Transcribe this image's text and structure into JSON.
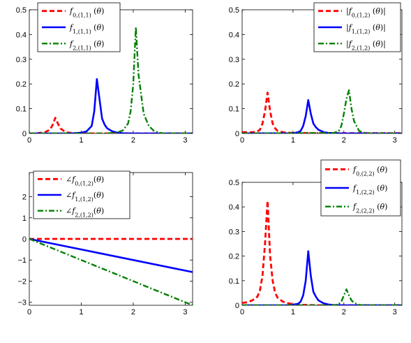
{
  "chart_data": [
    {
      "id": "top-left",
      "type": "line",
      "xlim": [
        0,
        3.14159
      ],
      "ylim": [
        0,
        0.5
      ],
      "xticks": [
        0,
        1,
        2,
        3
      ],
      "yticks": [
        0,
        0.1,
        0.2,
        0.3,
        0.4,
        0.5
      ],
      "xtick_labels": [
        "0",
        "1",
        "2",
        "3"
      ],
      "ytick_labels": [
        "0",
        "0.1",
        "0.2",
        "0.3",
        "0.4",
        "0.5"
      ],
      "legend_position": "top-left",
      "series": [
        {
          "name": "f0,(1,1) (θ)",
          "color": "#ff0000",
          "style": "dashed",
          "x": [
            0,
            0.1,
            0.2,
            0.3,
            0.4,
            0.45,
            0.5,
            0.55,
            0.6,
            0.7,
            0.8,
            1.0,
            1.5,
            2.0,
            2.5,
            3.14
          ],
          "y": [
            0,
            0,
            0.002,
            0.005,
            0.015,
            0.035,
            0.063,
            0.04,
            0.02,
            0.005,
            0.002,
            0,
            0,
            0,
            0,
            0
          ]
        },
        {
          "name": "f1,(1,1) (θ)",
          "color": "#0000ff",
          "style": "solid",
          "x": [
            0,
            0.8,
            1.0,
            1.1,
            1.2,
            1.25,
            1.3,
            1.35,
            1.4,
            1.45,
            1.5,
            1.6,
            1.7,
            1.8,
            2.0,
            3.14
          ],
          "y": [
            0,
            0,
            0.003,
            0.008,
            0.03,
            0.09,
            0.22,
            0.14,
            0.06,
            0.035,
            0.02,
            0.008,
            0.003,
            0.001,
            0,
            0
          ]
        },
        {
          "name": "f2,(1,1) (θ)",
          "color": "#008000",
          "style": "dashdot",
          "x": [
            0,
            1.5,
            1.7,
            1.8,
            1.9,
            1.95,
            2.0,
            2.05,
            2.1,
            2.2,
            2.3,
            2.4,
            2.5,
            2.6,
            3.14
          ],
          "y": [
            0,
            0,
            0.005,
            0.012,
            0.04,
            0.09,
            0.2,
            0.43,
            0.24,
            0.08,
            0.03,
            0.01,
            0.003,
            0,
            0
          ]
        }
      ]
    },
    {
      "id": "top-right",
      "type": "line",
      "xlim": [
        0,
        3.14159
      ],
      "ylim": [
        0,
        0.5
      ],
      "xticks": [
        0,
        1,
        2,
        3
      ],
      "yticks": [
        0,
        0.1,
        0.2,
        0.3,
        0.4,
        0.5
      ],
      "xtick_labels": [
        "0",
        "1",
        "2",
        "3"
      ],
      "ytick_labels": [
        "0",
        "0.1",
        "0.2",
        "0.3",
        "0.4",
        "0.5"
      ],
      "legend_position": "top-right",
      "series": [
        {
          "name": "|f0,(1,2) (θ)|",
          "color": "#ff0000",
          "style": "dashed",
          "x": [
            0,
            0.2,
            0.3,
            0.35,
            0.4,
            0.45,
            0.5,
            0.55,
            0.6,
            0.65,
            0.7,
            0.8,
            0.9,
            1.0,
            1.5,
            3.14
          ],
          "y": [
            0.005,
            0.005,
            0.008,
            0.015,
            0.04,
            0.09,
            0.165,
            0.09,
            0.04,
            0.02,
            0.01,
            0.005,
            0.003,
            0.002,
            0.001,
            0.001
          ]
        },
        {
          "name": "|f1,(1,2) (θ)|",
          "color": "#0000ff",
          "style": "solid",
          "x": [
            0,
            1.0,
            1.1,
            1.15,
            1.2,
            1.25,
            1.3,
            1.35,
            1.4,
            1.45,
            1.5,
            1.6,
            1.7,
            1.8,
            2.0,
            3.14
          ],
          "y": [
            0,
            0.001,
            0.005,
            0.01,
            0.03,
            0.07,
            0.135,
            0.08,
            0.04,
            0.025,
            0.015,
            0.005,
            0.002,
            0.001,
            0,
            0
          ]
        },
        {
          "name": "|f2,(1,2) (θ)|",
          "color": "#008000",
          "style": "dashdot",
          "x": [
            0,
            1.8,
            1.9,
            1.95,
            2.0,
            2.05,
            2.1,
            2.15,
            2.2,
            2.3,
            2.4,
            2.5,
            3.14
          ],
          "y": [
            0,
            0.002,
            0.01,
            0.03,
            0.08,
            0.14,
            0.175,
            0.1,
            0.05,
            0.01,
            0.003,
            0,
            0
          ]
        }
      ]
    },
    {
      "id": "bottom-left",
      "type": "line",
      "xlim": [
        0,
        3.14159
      ],
      "ylim": [
        -3.14159,
        3.14159
      ],
      "xticks": [
        0,
        1,
        2,
        3
      ],
      "yticks": [
        -3,
        -2,
        -1,
        0,
        1,
        2
      ],
      "xtick_labels": [
        "0",
        "1",
        "2",
        "3"
      ],
      "ytick_labels": [
        "−3",
        "−2",
        "−1",
        "0",
        "1",
        "2"
      ],
      "legend_position": "top-left",
      "series": [
        {
          "name": "∠f0,(1,2)(θ)",
          "color": "#ff0000",
          "style": "dashed",
          "x": [
            0,
            3.14159
          ],
          "y": [
            0,
            0
          ]
        },
        {
          "name": "∠f1,(1,2)(θ)",
          "color": "#0000ff",
          "style": "solid",
          "x": [
            0,
            3.14159
          ],
          "y": [
            0,
            -1.5708
          ]
        },
        {
          "name": "∠f2,(1,2)(θ)",
          "color": "#008000",
          "style": "dashdot",
          "x": [
            0,
            3.14159
          ],
          "y": [
            0,
            -3.14159
          ]
        }
      ]
    },
    {
      "id": "bottom-right",
      "type": "line",
      "xlim": [
        0,
        3.14159
      ],
      "ylim": [
        0,
        0.5
      ],
      "xticks": [
        0,
        1,
        2,
        3
      ],
      "yticks": [
        0,
        0.1,
        0.2,
        0.3,
        0.4,
        0.5
      ],
      "xtick_labels": [
        "0",
        "1",
        "2",
        "3"
      ],
      "ytick_labels": [
        "0",
        "0.1",
        "0.2",
        "0.3",
        "0.4",
        "0.5"
      ],
      "legend_position": "top-right",
      "series": [
        {
          "name": "f0,(2,2) (θ)",
          "color": "#ff0000",
          "style": "dashed",
          "x": [
            0,
            0.1,
            0.2,
            0.3,
            0.35,
            0.4,
            0.45,
            0.5,
            0.55,
            0.6,
            0.65,
            0.7,
            0.8,
            0.9,
            1.0,
            1.2,
            1.5,
            3.14
          ],
          "y": [
            0.01,
            0.012,
            0.02,
            0.035,
            0.06,
            0.12,
            0.25,
            0.425,
            0.2,
            0.1,
            0.05,
            0.03,
            0.015,
            0.008,
            0.005,
            0.002,
            0,
            0
          ]
        },
        {
          "name": "f1,(2,2) (θ)",
          "color": "#0000ff",
          "style": "solid",
          "x": [
            0,
            0.9,
            1.0,
            1.1,
            1.15,
            1.2,
            1.25,
            1.3,
            1.35,
            1.4,
            1.45,
            1.5,
            1.6,
            1.7,
            1.8,
            2.0,
            3.14
          ],
          "y": [
            0,
            0,
            0.002,
            0.006,
            0.015,
            0.04,
            0.1,
            0.22,
            0.12,
            0.055,
            0.035,
            0.02,
            0.008,
            0.003,
            0.001,
            0,
            0
          ]
        },
        {
          "name": "f2,(2,2) (θ)",
          "color": "#008000",
          "style": "dashdot",
          "x": [
            0,
            1.8,
            1.9,
            1.95,
            2.0,
            2.05,
            2.1,
            2.15,
            2.2,
            2.3,
            2.4,
            3.14
          ],
          "y": [
            0,
            0,
            0.005,
            0.015,
            0.04,
            0.065,
            0.04,
            0.02,
            0.01,
            0.002,
            0,
            0
          ]
        }
      ]
    }
  ]
}
